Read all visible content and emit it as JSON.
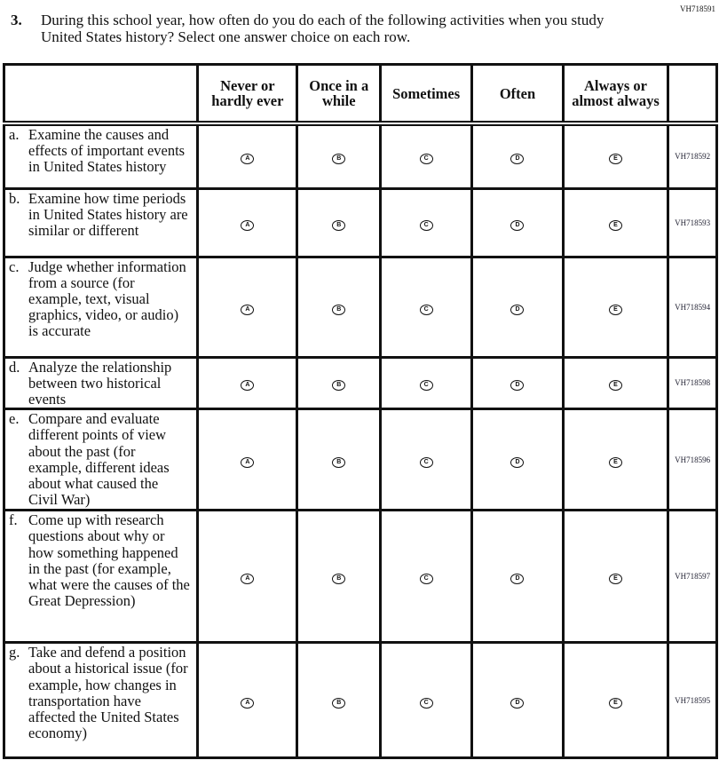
{
  "question_id": "VH718591",
  "question_number": "3.",
  "question_text": "During this school year, how often do you do each of the following activities when you study United States history? Select one answer choice on each row.",
  "columns": [
    "Never or hardly ever",
    "Once in a while",
    "Sometimes",
    "Often",
    "Always or almost always"
  ],
  "bubbles": [
    "A",
    "B",
    "C",
    "D",
    "E"
  ],
  "rows": [
    {
      "letter": "a.",
      "text": "Examine the causes and effects of important events in United States history",
      "id": "VH718592"
    },
    {
      "letter": "b.",
      "text": "Examine how time periods in United States history are similar or different",
      "id": "VH718593"
    },
    {
      "letter": "c.",
      "text": "Judge whether information from a source (for example, text, visual graphics, video, or audio) is accurate",
      "id": "VH718594"
    },
    {
      "letter": "d.",
      "text": "Analyze the relationship between two historical events",
      "id": "VH718598"
    },
    {
      "letter": "e.",
      "text": "Compare and evaluate different points of view about the past (for example, different ideas about what caused the Civil War)",
      "id": "VH718596"
    },
    {
      "letter": "f.",
      "text": "Come up with research questions about why or how something happened in the past (for example, what were the causes of the Great Depression)",
      "id": "VH718597"
    },
    {
      "letter": "g.",
      "text": "Take and defend a position about a historical issue (for example, how changes in transportation have affected the United States economy)",
      "id": "VH718595"
    }
  ]
}
